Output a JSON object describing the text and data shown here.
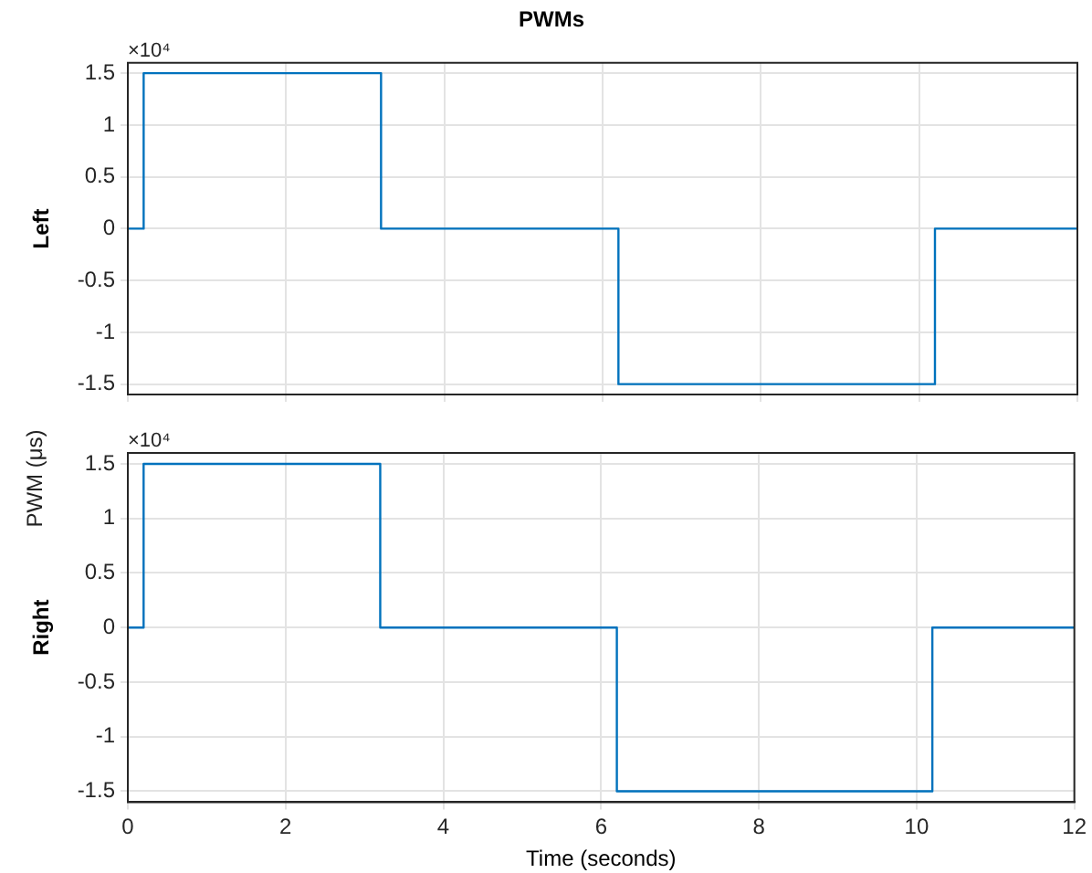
{
  "chart_data": [
    {
      "type": "step",
      "title": "PWMs",
      "ylabel": "Left",
      "annotations": [
        "×10⁴",
        "PWM (μs)"
      ],
      "x": [
        0,
        0.2,
        3.2,
        6.2,
        10.2,
        12
      ],
      "series": [
        {
          "color": "#0072bd",
          "values": [
            0,
            1.5,
            0,
            -1.5,
            0,
            0
          ]
        }
      ],
      "xlim": [
        0,
        12
      ],
      "xticks": [
        0,
        2,
        4,
        6,
        8,
        10,
        12
      ],
      "ylim": [
        -1.6,
        1.6
      ],
      "yticks": [
        -1.5,
        -1,
        -0.5,
        0,
        0.5,
        1,
        1.5
      ],
      "grid": true,
      "tick_labels": "y"
    },
    {
      "type": "step",
      "ylabel": "Right",
      "xlabel": "Time (seconds)",
      "annotations": [
        "×10⁴"
      ],
      "x": [
        0,
        0.2,
        3.2,
        6.2,
        10.2,
        12
      ],
      "series": [
        {
          "color": "#0072bd",
          "values": [
            0,
            1.5,
            0,
            -1.5,
            0,
            0
          ]
        }
      ],
      "xlim": [
        0,
        12
      ],
      "xticks": [
        0,
        2,
        4,
        6,
        8,
        10,
        12
      ],
      "ylim": [
        -1.6,
        1.6
      ],
      "yticks": [
        -1.5,
        -1,
        -0.5,
        0,
        0.5,
        1,
        1.5
      ],
      "grid": true
    }
  ]
}
